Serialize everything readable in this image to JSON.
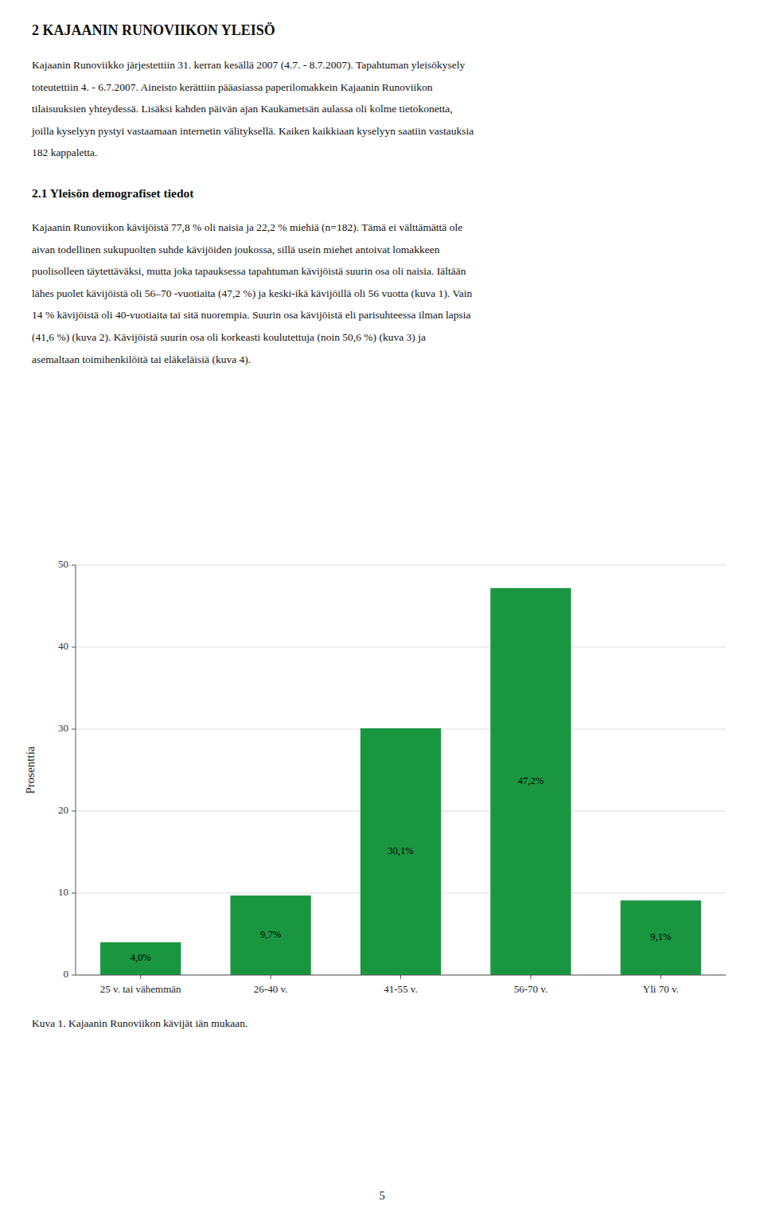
{
  "page_title": "2 KAJAANIN RUNOVIIKON YLEISÖ",
  "para1_lines": [
    "Kajaanin Runoviikko järjestettiin 31. kerran kesällä 2007 (4.7. - 8.7.2007). Tapahtuman yleisökysely",
    "toteutettiin 4. - 6.7.2007. Aineisto kerättiin pääasiassa paperilomakkein Kajaanin Runoviikon",
    "tilaisuuksien yhteydessä. Lisäksi kahden päivän ajan Kaukametsän aulassa oli kolme tietokonetta,",
    "joilla kyselyyn pystyi vastaamaan internetin välityksellä. Kaiken kaikkiaan kyselyyn saatiin vastauksia",
    "182 kappaletta."
  ],
  "section_title": "2.1 Yleisön demografiset tiedot",
  "para2_lines": [
    "Kajaanin Runoviikon kävijöistä 77,8 % oli naisia ja 22,2 % miehiä (n=182). Tämä ei välttämättä ole",
    "aivan todellinen sukupuolten suhde kävijöiden joukossa, sillä usein miehet antoivat lomakkeen",
    "puolisolleen täytettäväksi, mutta joka tapauksessa tapahtuman kävijöistä suurin osa oli naisia. Iältään",
    "lähes puolet kävijöistä oli 56–70 -vuotiaita (47,2 %) ja keski-ikä kävijöillä oli 56 vuotta (kuva 1). Vain",
    "14 % kävijöistä oli 40-vuotiaita tai sitä nuorempia. Suurin osa kävijöistä eli parisuhteessa ilman lapsia",
    "(41,6 %) (kuva 2). Kävijöistä suurin osa oli korkeasti koulutettuja (noin 50,6 %) (kuva 3) ja",
    "asemaltaan toimihenkilöitä tai eläkeläisiä (kuva 4)."
  ],
  "page_number": "5",
  "chart_data": {
    "type": "bar",
    "caption": "Kuva 1. Kajaanin Runoviikon kävijät iän mukaan.",
    "categories": [
      "25 v. tai vähemmän",
      "26-40 v.",
      "41-55 v.",
      "56-70 v.",
      "Yli 70 v."
    ],
    "values": [
      4.0,
      9.7,
      30.1,
      47.2,
      9.1
    ],
    "value_labels": [
      "4,0%",
      "9,7%",
      "30,1%",
      "47,2%",
      "9,1%"
    ],
    "data_labels": true,
    "color": "#1a9641",
    "ylabel": "Prosenttia",
    "ylim": [
      0,
      50
    ],
    "yticks": [
      0,
      10,
      20,
      30,
      40,
      50
    ],
    "grid": true
  }
}
